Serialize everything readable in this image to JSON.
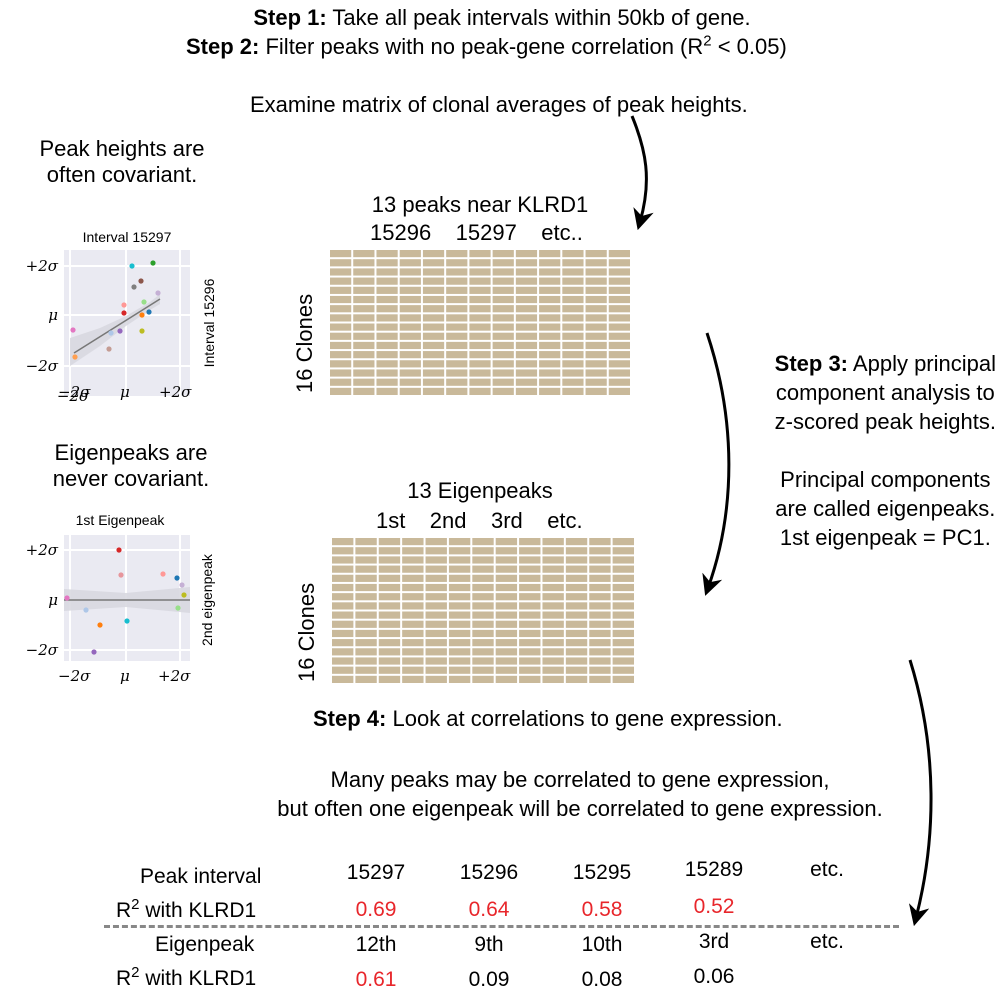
{
  "colors": {
    "matrix_cell": "#c9b99a",
    "highlight": "#e8262b",
    "plot_bg": "#eaeaf2",
    "grid": "#ffffff",
    "arrow": "#000000"
  },
  "header": {
    "step1_label": "Step 1:",
    "step1_text": "Take all peak intervals within 50kb of gene.",
    "step2_label": "Step 2:",
    "step2_text_pre": "Filter peaks with no peak-gene correlation (R",
    "step2_sup": "2",
    "step2_text_post": " < 0.05)",
    "examine": "Examine matrix of clonal averages of peak heights."
  },
  "left": {
    "covariant_line1": "Peak heights are",
    "covariant_line2": "often covariant.",
    "eigen_line1": "Eigenpeaks are",
    "eigen_line2": "never covariant."
  },
  "plot1": {
    "title": "Interval 15297",
    "ylabel": "Interval 15296",
    "yticks": [
      "+2σ",
      "μ",
      "−2σ"
    ],
    "xticks": [
      "−2σ",
      "μ",
      "+2σ"
    ]
  },
  "plot2": {
    "title": "1st Eigenpeak",
    "ylabel": "2nd eigenpeak",
    "yticks": [
      "+2σ",
      "μ",
      "−2σ"
    ],
    "xticks": [
      "−2σ",
      "μ",
      "+2σ"
    ]
  },
  "matrix1": {
    "title": "13 peaks near KLRD1",
    "cols_label": "15296    15297    etc..",
    "rows_label": "16 Clones"
  },
  "matrix2": {
    "title": "13 Eigenpeaks",
    "cols_label": "1st    2nd    3rd    etc.",
    "rows_label": "16 Clones"
  },
  "step3": {
    "label": "Step 3:",
    "line1": "Apply principal",
    "line2": "component analysis to",
    "line3": "z-scored peak heights.",
    "line4": "Principal components",
    "line5": "are called eigenpeaks.",
    "line6": "1st eigenpeak = PC1."
  },
  "step4": {
    "label": "Step 4:",
    "text": "Look at correlations to gene expression.",
    "many1": "Many peaks may be correlated to gene expression,",
    "many2": "but often one eigenpeak will be correlated to gene expression."
  },
  "table": {
    "row1_label": "Peak interval",
    "row1_values": [
      "15297",
      "15296",
      "15295",
      "15289",
      "etc."
    ],
    "row2_label_pre": "R",
    "row2_label_sup": "2",
    "row2_label_post": " with KLRD1",
    "row2_values": [
      "0.69",
      "0.64",
      "0.58",
      "0.52"
    ],
    "row3_label": "Eigenpeak",
    "row3_values": [
      "12th",
      "9th",
      "10th",
      "3rd",
      "etc."
    ],
    "row4_label_pre": "R",
    "row4_label_sup": "2",
    "row4_label_post": " with KLRD1",
    "row4_values": [
      "0.61",
      "0.09",
      "0.08",
      "0.06"
    ]
  }
}
